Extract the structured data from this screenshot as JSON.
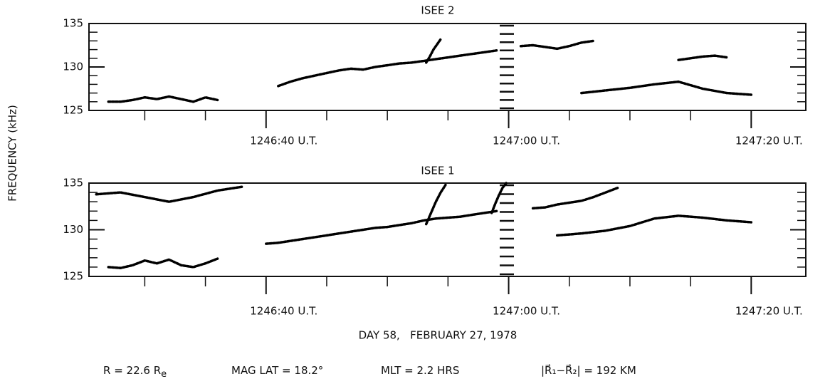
{
  "chart_data": [
    {
      "type": "spectrogram",
      "title": "ISEE 2",
      "ylabel": "FREQUENCY (kHz)",
      "ylim": [
        125,
        135
      ],
      "yticks": [
        125,
        130,
        135
      ],
      "yminor": [
        126,
        127,
        128,
        129,
        131,
        132,
        133,
        134
      ],
      "xlim": [
        25.4,
        84.5
      ],
      "xticks": [
        {
          "value": 40,
          "label": "1246:40 U.T."
        },
        {
          "value": 60,
          "label": "1247:00 U.T."
        },
        {
          "value": 80,
          "label": "1247:20 U.T."
        }
      ],
      "xminor": [
        30,
        35,
        45,
        50,
        55,
        65,
        70,
        75
      ],
      "series": [
        {
          "color": "#000000",
          "x": [
            27,
            28,
            29,
            30,
            31,
            32,
            33,
            34,
            35,
            36
          ],
          "values": [
            126,
            126,
            126.2,
            126.5,
            126.3,
            126.6,
            126.3,
            126,
            126.5,
            126.2
          ]
        },
        {
          "color": "#000000",
          "x": [
            41,
            42,
            43,
            44,
            45,
            46,
            47,
            48,
            49,
            50,
            51,
            52,
            53,
            54,
            55,
            56,
            57,
            58,
            59
          ],
          "values": [
            127.8,
            128.3,
            128.7,
            129,
            129.3,
            129.6,
            129.8,
            129.7,
            130,
            130.2,
            130.4,
            130.5,
            130.7,
            130.9,
            131.1,
            131.3,
            131.5,
            131.7,
            131.9
          ]
        },
        {
          "color": "#000000",
          "x": [
            53.2,
            53.5,
            53.8,
            54.1,
            54.4
          ],
          "values": [
            130.5,
            131.2,
            132,
            132.6,
            133.2
          ]
        },
        {
          "color": "#000000",
          "x": [
            61,
            62,
            63,
            64,
            65,
            66,
            67
          ],
          "values": [
            132.4,
            132.5,
            132.3,
            132.1,
            132.4,
            132.8,
            133
          ]
        },
        {
          "color": "#000000",
          "x": [
            66,
            68,
            70,
            72,
            74,
            76,
            78,
            80
          ],
          "values": [
            127,
            127.3,
            127.6,
            128,
            128.3,
            127.5,
            127,
            126.8
          ]
        },
        {
          "color": "#000000",
          "x": [
            74,
            75,
            76,
            77,
            78
          ],
          "values": [
            130.8,
            131,
            131.2,
            131.3,
            131.1
          ]
        }
      ]
    },
    {
      "type": "spectrogram",
      "title": "ISEE 1",
      "ylim": [
        125,
        135
      ],
      "yticks": [
        125,
        130,
        135
      ],
      "yminor": [
        126,
        127,
        128,
        129,
        131,
        132,
        133,
        134
      ],
      "xlim": [
        25.4,
        84.5
      ],
      "xticks": [
        {
          "value": 40,
          "label": "1246:40 U.T."
        },
        {
          "value": 60,
          "label": "1247:00 U.T."
        },
        {
          "value": 80,
          "label": "1247:20 U.T."
        }
      ],
      "xminor": [
        30,
        35,
        45,
        50,
        55,
        65,
        70,
        75
      ],
      "series": [
        {
          "color": "#000000",
          "x": [
            27,
            28,
            29,
            30,
            31,
            32,
            33,
            34,
            35,
            36
          ],
          "values": [
            126,
            125.9,
            126.2,
            126.7,
            126.4,
            126.8,
            126.2,
            126,
            126.4,
            126.9
          ]
        },
        {
          "color": "#000000",
          "x": [
            40,
            41,
            42,
            43,
            44,
            45,
            46,
            47,
            48,
            49,
            50,
            51,
            52,
            53,
            54,
            55,
            56,
            57,
            58,
            59
          ],
          "values": [
            128.5,
            128.6,
            128.8,
            129,
            129.2,
            129.4,
            129.6,
            129.8,
            130,
            130.2,
            130.3,
            130.5,
            130.7,
            131,
            131.2,
            131.3,
            131.4,
            131.6,
            131.8,
            132
          ]
        },
        {
          "color": "#000000",
          "x": [
            53.2,
            53.6,
            54,
            54.4,
            54.8
          ],
          "values": [
            130.6,
            131.8,
            133,
            134,
            134.8
          ]
        },
        {
          "color": "#000000",
          "x": [
            58.6,
            58.9,
            59.2,
            59.5,
            59.8
          ],
          "values": [
            131.8,
            132.8,
            133.7,
            134.5,
            135
          ]
        },
        {
          "color": "#000000",
          "x": [
            62,
            63,
            64,
            65,
            66,
            67,
            68,
            69
          ],
          "values": [
            132.3,
            132.4,
            132.7,
            132.9,
            133.1,
            133.5,
            134,
            134.5
          ]
        },
        {
          "color": "#000000",
          "x": [
            64,
            66,
            68,
            70,
            72,
            74,
            76,
            78,
            80
          ],
          "values": [
            129.4,
            129.6,
            129.9,
            130.4,
            131.2,
            131.5,
            131.3,
            131,
            130.8
          ]
        },
        {
          "color": "#000000",
          "x": [
            26,
            28,
            30,
            32,
            34,
            36,
            38
          ],
          "values": [
            133.8,
            134,
            133.5,
            133,
            133.5,
            134.2,
            134.6
          ]
        }
      ]
    }
  ],
  "footer": {
    "date": "DAY 58,   FEBRUARY 27, 1978",
    "params": [
      {
        "text": "R = 22.6 R",
        "sub": "e"
      },
      {
        "text": "MAG LAT = 18.2°"
      },
      {
        "text": "MLT = 2.2 HRS"
      },
      {
        "text": "|R⃗₁−R⃗₂| = 192 KM"
      }
    ]
  }
}
